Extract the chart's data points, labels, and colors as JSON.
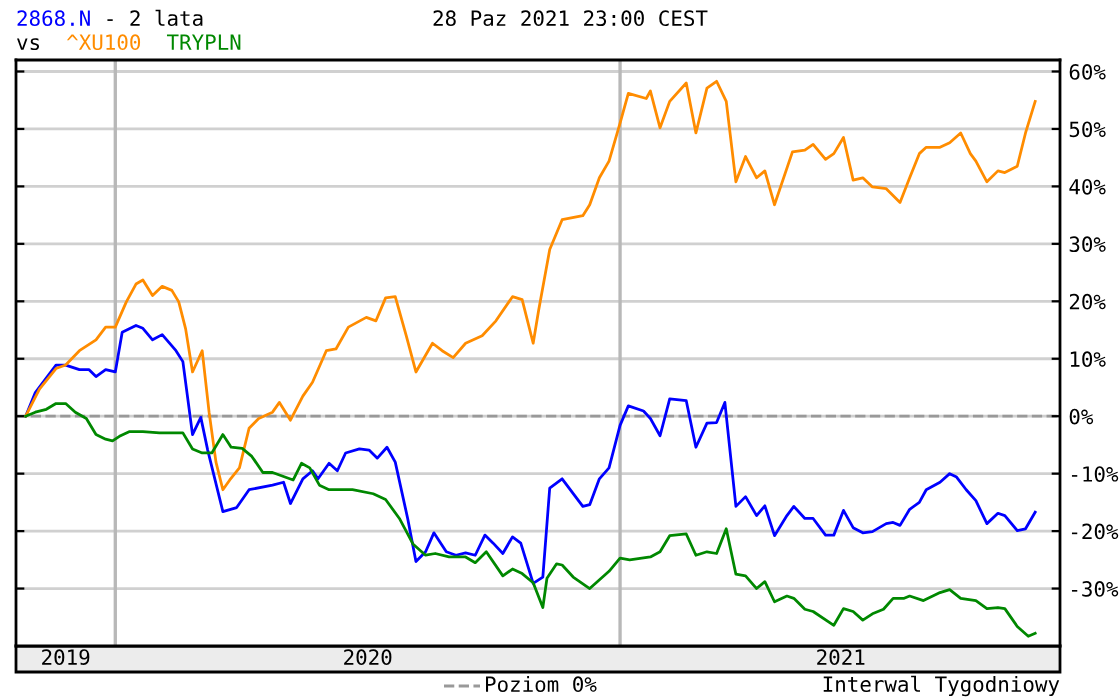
{
  "chart_data": {
    "type": "line",
    "title": "- 2 lata",
    "subtitle": "28 Paz 2021 23:00 CEST",
    "annotations": [
      "vs",
      "Interwal Tygodniowy"
    ],
    "legend": "bottom",
    "grid": "y",
    "line_style": "solid",
    "xlim": [
      "2019-10-21",
      "2021-11-16"
    ],
    "xticks": [
      {
        "value": "2019-11-26",
        "label": "2019"
      },
      {
        "value": "2020-07-02",
        "label": "2020"
      },
      {
        "value": "2021-06-10",
        "label": "2021"
      }
    ],
    "ylim": [
      -40,
      62
    ],
    "yticks": [
      {
        "value": -30,
        "label": "-30%"
      },
      {
        "value": -20,
        "label": "-20%"
      },
      {
        "value": -10,
        "label": "-10%"
      },
      {
        "value": 0,
        "label": "0%"
      },
      {
        "value": 10,
        "label": "10%"
      },
      {
        "value": 20,
        "label": "20%"
      },
      {
        "value": 30,
        "label": "30%"
      },
      {
        "value": 40,
        "label": "40%"
      },
      {
        "value": 50,
        "label": "50%"
      },
      {
        "value": 60,
        "label": "60%"
      }
    ],
    "ref_lines": [
      {
        "axis": "y",
        "value": 0,
        "label": "Poziom 0%",
        "color": "#999999",
        "line_style": "dashed"
      },
      {
        "axis": "x",
        "value": "2020-01-01",
        "color": "#b8b8b8",
        "line_style": "solid"
      },
      {
        "axis": "x",
        "value": "2021-01-01",
        "color": "#b8b8b8",
        "line_style": "solid"
      }
    ],
    "series": [
      {
        "name": "2868.N",
        "color": "#0000ff",
        "x": [
          "2019-10-28",
          "2019-11-04",
          "2019-11-19",
          "2019-11-26",
          "2019-12-06",
          "2019-12-13",
          "2019-12-18",
          "2019-12-25",
          "2020-01-01",
          "2020-01-06",
          "2020-01-16",
          "2020-01-21",
          "2020-01-28",
          "2020-02-04",
          "2020-02-14",
          "2020-02-19",
          "2020-02-26",
          "2020-03-03",
          "2020-03-08",
          "2020-03-19",
          "2020-03-29",
          "2020-04-07",
          "2020-04-24",
          "2020-05-02",
          "2020-05-07",
          "2020-05-16",
          "2020-05-23",
          "2020-05-27",
          "2020-06-04",
          "2020-06-10",
          "2020-06-16",
          "2020-06-26",
          "2020-07-03",
          "2020-07-09",
          "2020-07-16",
          "2020-07-22",
          "2020-07-31",
          "2020-08-06",
          "2020-08-13",
          "2020-08-19",
          "2020-08-28",
          "2020-09-04",
          "2020-09-11",
          "2020-09-18",
          "2020-09-25",
          "2020-10-01",
          "2020-10-08",
          "2020-10-15",
          "2020-10-21",
          "2020-10-30",
          "2020-11-06",
          "2020-11-11",
          "2020-11-20",
          "2020-12-05",
          "2020-12-10",
          "2020-12-17",
          "2020-12-24",
          "2021-01-01",
          "2021-01-07",
          "2021-01-18",
          "2021-01-23",
          "2021-01-30",
          "2021-02-06",
          "2021-02-18",
          "2021-02-25",
          "2021-03-05",
          "2021-03-12",
          "2021-03-18",
          "2021-03-26",
          "2021-04-02",
          "2021-04-10",
          "2021-04-16",
          "2021-04-23",
          "2021-05-02",
          "2021-05-07",
          "2021-05-15",
          "2021-05-21",
          "2021-05-30",
          "2021-06-05",
          "2021-06-12",
          "2021-06-19",
          "2021-06-26",
          "2021-07-03",
          "2021-07-13",
          "2021-07-18",
          "2021-07-23",
          "2021-07-30",
          "2021-08-06",
          "2021-08-11",
          "2021-08-21",
          "2021-08-28",
          "2021-09-02",
          "2021-09-09",
          "2021-09-16",
          "2021-09-24",
          "2021-10-02",
          "2021-10-07",
          "2021-10-16",
          "2021-10-22",
          "2021-10-29"
        ],
        "values": [
          0,
          4.1,
          8.9,
          8.9,
          8.1,
          8.1,
          6.9,
          8.1,
          7.7,
          14.6,
          15.8,
          15.3,
          13.3,
          14.2,
          11.4,
          9.5,
          -3.2,
          -0.2,
          -5.9,
          -16.6,
          -15.9,
          -12.8,
          -12.0,
          -11.5,
          -15.2,
          -10.9,
          -9.5,
          -10.9,
          -8.2,
          -9.5,
          -6.4,
          -5.7,
          -5.9,
          -7.3,
          -5.4,
          -8.0,
          -17.8,
          -25.3,
          -23.6,
          -20.3,
          -23.6,
          -24.2,
          -23.8,
          -24.2,
          -20.7,
          -22.1,
          -23.9,
          -21.0,
          -22.1,
          -29.1,
          -28.0,
          -12.5,
          -10.9,
          -15.7,
          -15.4,
          -10.9,
          -9.0,
          -1.6,
          1.8,
          0.9,
          -0.4,
          -3.4,
          3.0,
          2.7,
          -5.4,
          -1.2,
          -1.1,
          2.4,
          -15.7,
          -14.0,
          -17.3,
          -15.6,
          -20.8,
          -17.3,
          -15.7,
          -17.8,
          -17.8,
          -20.7,
          -20.7,
          -16.4,
          -19.4,
          -20.3,
          -20.1,
          -18.7,
          -18.5,
          -19.0,
          -16.2,
          -15.0,
          -12.8,
          -11.5,
          -10.0,
          -10.6,
          -12.8,
          -14.7,
          -18.7,
          -16.9,
          -17.3,
          -19.9,
          -19.6,
          -16.7
        ]
      },
      {
        "name": "^XU100",
        "color": "#ff8c00",
        "x": [
          "2019-10-28",
          "2019-11-07",
          "2019-11-19",
          "2019-11-26",
          "2019-12-06",
          "2019-12-18",
          "2019-12-25",
          "2020-01-01",
          "2020-01-09",
          "2020-01-16",
          "2020-01-21",
          "2020-01-28",
          "2020-02-04",
          "2020-02-11",
          "2020-02-16",
          "2020-02-21",
          "2020-02-26",
          "2020-03-04",
          "2020-03-09",
          "2020-03-14",
          "2020-03-19",
          "2020-03-24",
          "2020-03-31",
          "2020-04-07",
          "2020-04-14",
          "2020-04-24",
          "2020-04-29",
          "2020-05-07",
          "2020-05-16",
          "2020-05-23",
          "2020-06-02",
          "2020-06-09",
          "2020-06-18",
          "2020-07-01",
          "2020-07-08",
          "2020-07-15",
          "2020-07-22",
          "2020-07-30",
          "2020-08-06",
          "2020-08-18",
          "2020-08-25",
          "2020-09-02",
          "2020-09-11",
          "2020-09-23",
          "2020-10-03",
          "2020-10-15",
          "2020-10-22",
          "2020-10-30",
          "2020-11-03",
          "2020-11-11",
          "2020-11-20",
          "2020-12-05",
          "2020-12-10",
          "2020-12-17",
          "2020-12-24",
          "2021-01-01",
          "2021-01-07",
          "2021-01-20",
          "2021-01-23",
          "2021-01-30",
          "2021-02-06",
          "2021-02-18",
          "2021-02-25",
          "2021-03-05",
          "2021-03-12",
          "2021-03-19",
          "2021-03-26",
          "2021-04-02",
          "2021-04-10",
          "2021-04-16",
          "2021-04-23",
          "2021-05-06",
          "2021-05-15",
          "2021-05-21",
          "2021-05-30",
          "2021-06-05",
          "2021-06-12",
          "2021-06-19",
          "2021-06-26",
          "2021-07-03",
          "2021-07-13",
          "2021-07-23",
          "2021-07-30",
          "2021-08-06",
          "2021-08-11",
          "2021-08-21",
          "2021-08-28",
          "2021-09-05",
          "2021-09-12",
          "2021-09-16",
          "2021-09-24",
          "2021-10-02",
          "2021-10-07",
          "2021-10-16",
          "2021-10-22",
          "2021-10-29"
        ],
        "values": [
          0,
          4.7,
          8.3,
          8.9,
          11.4,
          13.3,
          15.5,
          15.5,
          19.9,
          23.0,
          23.7,
          21.0,
          22.6,
          21.9,
          19.9,
          15.2,
          7.7,
          11.4,
          0.7,
          -8.0,
          -12.8,
          -11.1,
          -9.0,
          -2.1,
          -0.4,
          0.7,
          2.4,
          -0.7,
          3.5,
          5.9,
          11.4,
          11.7,
          15.5,
          17.2,
          16.6,
          20.6,
          20.8,
          14.0,
          7.7,
          12.7,
          11.4,
          10.2,
          12.7,
          14.0,
          16.6,
          20.8,
          20.3,
          12.7,
          18.5,
          29.0,
          34.2,
          34.9,
          36.8,
          41.5,
          44.4,
          51.0,
          56.2,
          55.3,
          56.6,
          50.2,
          54.8,
          58.0,
          49.3,
          57.1,
          58.3,
          54.8,
          40.8,
          45.2,
          41.5,
          42.7,
          36.8,
          46.0,
          46.3,
          47.3,
          44.7,
          45.7,
          48.5,
          41.1,
          41.5,
          39.9,
          39.6,
          37.2,
          41.5,
          45.7,
          46.8,
          46.8,
          47.6,
          49.3,
          45.7,
          44.4,
          40.8,
          42.7,
          42.4,
          43.5,
          49.3,
          54.8
        ]
      },
      {
        "name": "TRYPLN",
        "color": "#008800",
        "x": [
          "2019-10-28",
          "2019-11-04",
          "2019-11-12",
          "2019-11-19",
          "2019-11-26",
          "2019-12-03",
          "2019-12-11",
          "2019-12-18",
          "2019-12-25",
          "2019-12-30",
          "2020-01-04",
          "2020-01-11",
          "2020-01-21",
          "2020-02-02",
          "2020-02-19",
          "2020-02-26",
          "2020-03-04",
          "2020-03-11",
          "2020-03-19",
          "2020-03-25",
          "2020-04-02",
          "2020-04-09",
          "2020-04-17",
          "2020-04-24",
          "2020-05-02",
          "2020-05-09",
          "2020-05-15",
          "2020-05-21",
          "2020-05-28",
          "2020-06-04",
          "2020-06-21",
          "2020-07-06",
          "2020-07-15",
          "2020-07-25",
          "2020-08-04",
          "2020-08-13",
          "2020-08-20",
          "2020-08-30",
          "2020-09-11",
          "2020-09-18",
          "2020-09-26",
          "2020-10-08",
          "2020-10-15",
          "2020-10-22",
          "2020-10-30",
          "2020-11-06",
          "2020-11-09",
          "2020-11-16",
          "2020-11-20",
          "2020-11-28",
          "2020-12-10",
          "2020-12-24",
          "2021-01-01",
          "2021-01-08",
          "2021-01-23",
          "2021-01-30",
          "2021-02-06",
          "2021-02-18",
          "2021-02-25",
          "2021-03-05",
          "2021-03-12",
          "2021-03-19",
          "2021-03-26",
          "2021-04-02",
          "2021-04-10",
          "2021-04-16",
          "2021-04-23",
          "2021-05-02",
          "2021-05-07",
          "2021-05-15",
          "2021-05-21",
          "2021-06-05",
          "2021-06-12",
          "2021-06-19",
          "2021-06-26",
          "2021-07-03",
          "2021-07-11",
          "2021-07-18",
          "2021-07-26",
          "2021-07-30",
          "2021-08-09",
          "2021-08-21",
          "2021-08-28",
          "2021-09-05",
          "2021-09-16",
          "2021-09-24",
          "2021-10-02",
          "2021-10-07",
          "2021-10-16",
          "2021-10-24",
          "2021-10-29"
        ],
        "values": [
          0,
          0.7,
          1.2,
          2.2,
          2.2,
          0.7,
          -0.4,
          -3.2,
          -4.0,
          -4.3,
          -3.5,
          -2.7,
          -2.7,
          -2.9,
          -2.9,
          -5.7,
          -6.4,
          -6.4,
          -3.2,
          -5.4,
          -5.6,
          -7.0,
          -9.8,
          -9.8,
          -10.5,
          -11.1,
          -8.2,
          -9.0,
          -12.0,
          -12.8,
          -12.8,
          -13.5,
          -14.5,
          -17.8,
          -22.3,
          -24.2,
          -23.9,
          -24.5,
          -24.5,
          -25.5,
          -23.6,
          -27.8,
          -26.6,
          -27.4,
          -29.0,
          -33.3,
          -28.2,
          -25.7,
          -25.9,
          -28.0,
          -30.0,
          -27.0,
          -24.7,
          -25.0,
          -24.5,
          -23.6,
          -20.8,
          -20.5,
          -24.2,
          -23.6,
          -23.9,
          -19.6,
          -27.5,
          -27.8,
          -30.0,
          -28.8,
          -32.3,
          -31.3,
          -31.7,
          -33.6,
          -34.0,
          -36.4,
          -33.5,
          -34.0,
          -35.5,
          -34.4,
          -33.6,
          -31.7,
          -31.7,
          -31.3,
          -32.1,
          -30.7,
          -30.2,
          -31.7,
          -32.1,
          -33.5,
          -33.3,
          -33.5,
          -36.6,
          -38.3,
          -37.8
        ]
      }
    ]
  }
}
